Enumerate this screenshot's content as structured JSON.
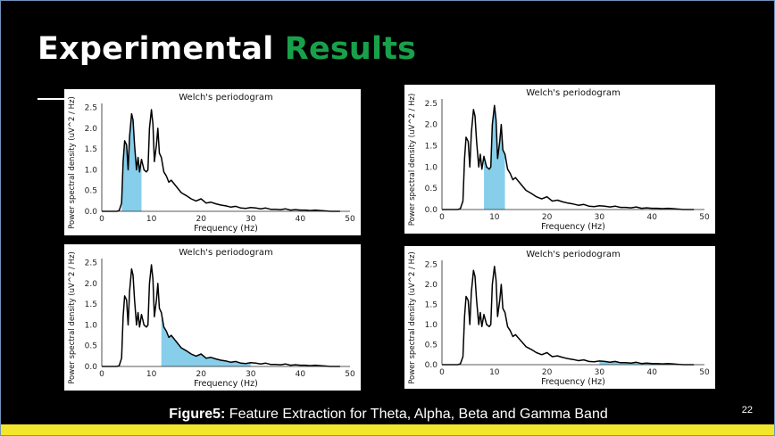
{
  "slide": {
    "title_main": "Experimental",
    "title_accent": "Results",
    "caption_bold": "Figure5:",
    "caption_rest": " Feature Extraction for Theta, Alpha, Beta and Gamma Band",
    "slide_number": "22",
    "colors": {
      "background": "#000000",
      "title": "#ffffff",
      "accent": "#18a14a",
      "bar": "#f2e62c",
      "fill": "#87ceeb",
      "line": "#000000"
    }
  },
  "chart_data": [
    {
      "type": "area",
      "title": "Welch's periodogram",
      "xlabel": "Frequency (Hz)",
      "ylabel": "Power spectral density (uV^2 / Hz)",
      "xlim": [
        0,
        50
      ],
      "ylim": [
        0,
        2.6
      ],
      "xticks": [
        "0",
        "10",
        "20",
        "30",
        "40",
        "50"
      ],
      "yticks": [
        "0.0",
        "0.5",
        "1.0",
        "1.5",
        "2.0",
        "2.5"
      ],
      "shaded_band": [
        4,
        8
      ],
      "x": [
        0,
        2,
        3,
        3.5,
        4,
        4.3,
        4.6,
        5,
        5.3,
        5.6,
        6,
        6.3,
        6.6,
        7,
        7.3,
        7.6,
        8,
        8.5,
        9,
        9.3,
        9.6,
        10,
        10.3,
        10.6,
        11,
        11.3,
        11.6,
        12,
        12.5,
        13,
        13.5,
        14,
        15,
        16,
        17,
        18,
        19,
        20,
        21,
        22,
        23,
        24,
        25,
        26,
        27,
        28,
        29,
        30,
        31,
        32,
        33,
        34,
        35,
        36,
        37,
        38,
        39,
        40,
        41,
        42,
        43,
        44,
        45,
        46,
        47,
        48
      ],
      "y": [
        0,
        0,
        0,
        0.02,
        0.2,
        1.2,
        1.7,
        1.6,
        1.0,
        1.8,
        2.35,
        2.2,
        1.6,
        1.0,
        1.3,
        0.95,
        1.25,
        1.0,
        0.95,
        1.0,
        2.0,
        2.45,
        2.1,
        1.2,
        1.6,
        2.0,
        1.4,
        1.3,
        0.95,
        0.85,
        0.7,
        0.75,
        0.6,
        0.45,
        0.38,
        0.3,
        0.25,
        0.3,
        0.2,
        0.22,
        0.18,
        0.15,
        0.13,
        0.1,
        0.12,
        0.08,
        0.07,
        0.09,
        0.08,
        0.06,
        0.08,
        0.05,
        0.05,
        0.04,
        0.06,
        0.03,
        0.04,
        0.03,
        0.03,
        0.02,
        0.03,
        0.02,
        0.01,
        0,
        0,
        0
      ]
    },
    {
      "type": "area",
      "title": "Welch's periodogram",
      "xlabel": "Frequency (Hz)",
      "ylabel": "Power spectral density (uV^2 / Hz)",
      "xlim": [
        0,
        50
      ],
      "ylim": [
        0,
        2.6
      ],
      "xticks": [
        "0",
        "10",
        "20",
        "30",
        "40",
        "50"
      ],
      "yticks": [
        "0.0",
        "0.5",
        "1.0",
        "1.5",
        "2.0",
        "2.5"
      ],
      "shaded_band": [
        8,
        12
      ],
      "x": [
        0,
        2,
        3,
        3.5,
        4,
        4.3,
        4.6,
        5,
        5.3,
        5.6,
        6,
        6.3,
        6.6,
        7,
        7.3,
        7.6,
        8,
        8.5,
        9,
        9.3,
        9.6,
        10,
        10.3,
        10.6,
        11,
        11.3,
        11.6,
        12,
        12.5,
        13,
        13.5,
        14,
        15,
        16,
        17,
        18,
        19,
        20,
        21,
        22,
        23,
        24,
        25,
        26,
        27,
        28,
        29,
        30,
        31,
        32,
        33,
        34,
        35,
        36,
        37,
        38,
        39,
        40,
        41,
        42,
        43,
        44,
        45,
        46,
        47,
        48
      ],
      "y": [
        0,
        0,
        0,
        0.02,
        0.2,
        1.2,
        1.7,
        1.6,
        1.0,
        1.8,
        2.35,
        2.2,
        1.6,
        1.0,
        1.3,
        0.95,
        1.25,
        1.0,
        0.95,
        1.0,
        2.0,
        2.45,
        2.1,
        1.2,
        1.6,
        2.0,
        1.4,
        1.3,
        0.95,
        0.85,
        0.7,
        0.75,
        0.6,
        0.45,
        0.38,
        0.3,
        0.25,
        0.3,
        0.2,
        0.22,
        0.18,
        0.15,
        0.13,
        0.1,
        0.12,
        0.08,
        0.07,
        0.09,
        0.08,
        0.06,
        0.08,
        0.05,
        0.05,
        0.04,
        0.06,
        0.03,
        0.04,
        0.03,
        0.03,
        0.02,
        0.03,
        0.02,
        0.01,
        0,
        0,
        0
      ]
    },
    {
      "type": "area",
      "title": "Welch's periodogram",
      "xlabel": "Frequency (Hz)",
      "ylabel": "Power spectral density (uV^2 / Hz)",
      "xlim": [
        0,
        50
      ],
      "ylim": [
        0,
        2.6
      ],
      "xticks": [
        "0",
        "10",
        "20",
        "30",
        "40",
        "50"
      ],
      "yticks": [
        "0.0",
        "0.5",
        "1.0",
        "1.5",
        "2.0",
        "2.5"
      ],
      "shaded_band": [
        12,
        30
      ],
      "x": [
        0,
        2,
        3,
        3.5,
        4,
        4.3,
        4.6,
        5,
        5.3,
        5.6,
        6,
        6.3,
        6.6,
        7,
        7.3,
        7.6,
        8,
        8.5,
        9,
        9.3,
        9.6,
        10,
        10.3,
        10.6,
        11,
        11.3,
        11.6,
        12,
        12.5,
        13,
        13.5,
        14,
        15,
        16,
        17,
        18,
        19,
        20,
        21,
        22,
        23,
        24,
        25,
        26,
        27,
        28,
        29,
        30,
        31,
        32,
        33,
        34,
        35,
        36,
        37,
        38,
        39,
        40,
        41,
        42,
        43,
        44,
        45,
        46,
        47,
        48
      ],
      "y": [
        0,
        0,
        0,
        0.02,
        0.2,
        1.2,
        1.7,
        1.6,
        1.0,
        1.8,
        2.35,
        2.2,
        1.6,
        1.0,
        1.3,
        0.95,
        1.25,
        1.0,
        0.95,
        1.0,
        2.0,
        2.45,
        2.1,
        1.2,
        1.6,
        2.0,
        1.4,
        1.3,
        0.95,
        0.85,
        0.7,
        0.75,
        0.6,
        0.45,
        0.38,
        0.3,
        0.25,
        0.3,
        0.2,
        0.22,
        0.18,
        0.15,
        0.13,
        0.1,
        0.12,
        0.08,
        0.07,
        0.09,
        0.08,
        0.06,
        0.08,
        0.05,
        0.05,
        0.04,
        0.06,
        0.03,
        0.04,
        0.03,
        0.03,
        0.02,
        0.03,
        0.02,
        0.01,
        0,
        0,
        0
      ]
    },
    {
      "type": "area",
      "title": "Welch's periodogram",
      "xlabel": "Frequency (Hz)",
      "ylabel": "Power spectral density (uV^2 / Hz)",
      "xlim": [
        0,
        50
      ],
      "ylim": [
        0,
        2.6
      ],
      "xticks": [
        "0",
        "10",
        "20",
        "30",
        "40",
        "50"
      ],
      "yticks": [
        "0.0",
        "0.5",
        "1.0",
        "1.5",
        "2.0",
        "2.5"
      ],
      "shaded_band": [
        30,
        45
      ],
      "x": [
        0,
        2,
        3,
        3.5,
        4,
        4.3,
        4.6,
        5,
        5.3,
        5.6,
        6,
        6.3,
        6.6,
        7,
        7.3,
        7.6,
        8,
        8.5,
        9,
        9.3,
        9.6,
        10,
        10.3,
        10.6,
        11,
        11.3,
        11.6,
        12,
        12.5,
        13,
        13.5,
        14,
        15,
        16,
        17,
        18,
        19,
        20,
        21,
        22,
        23,
        24,
        25,
        26,
        27,
        28,
        29,
        30,
        31,
        32,
        33,
        34,
        35,
        36,
        37,
        38,
        39,
        40,
        41,
        42,
        43,
        44,
        45,
        46,
        47,
        48
      ],
      "y": [
        0,
        0,
        0,
        0.02,
        0.2,
        1.2,
        1.7,
        1.6,
        1.0,
        1.8,
        2.35,
        2.2,
        1.6,
        1.0,
        1.3,
        0.95,
        1.25,
        1.0,
        0.95,
        1.0,
        2.0,
        2.45,
        2.1,
        1.2,
        1.6,
        2.0,
        1.4,
        1.3,
        0.95,
        0.85,
        0.7,
        0.75,
        0.6,
        0.45,
        0.38,
        0.3,
        0.25,
        0.3,
        0.2,
        0.22,
        0.18,
        0.15,
        0.13,
        0.1,
        0.12,
        0.08,
        0.07,
        0.09,
        0.08,
        0.06,
        0.08,
        0.05,
        0.05,
        0.04,
        0.06,
        0.03,
        0.04,
        0.03,
        0.03,
        0.02,
        0.03,
        0.02,
        0.01,
        0,
        0,
        0
      ]
    }
  ]
}
